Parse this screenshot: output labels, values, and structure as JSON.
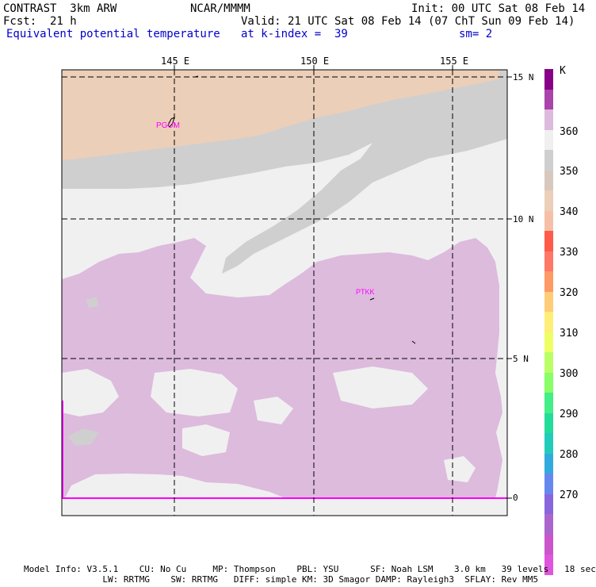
{
  "header": {
    "model": "CONTRAST  3km ARW",
    "org": "NCAR/MMMM",
    "init": "Init: 00 UTC Sat 08 Feb 14",
    "fcst": "Fcst:  21 h",
    "valid": "Valid: 21 UTC Sat 08 Feb 14 (07 ChT Sun 09 Feb 14)",
    "field": "Equivalent potential temperature",
    "level": "at k-index =  39",
    "smooth": "sm= 2"
  },
  "map": {
    "lon_labels": [
      "145 E",
      "150 E",
      "155 E"
    ],
    "lat_labels": [
      "15 N",
      "10 N",
      "5 N",
      "0"
    ],
    "stations": [
      "PGUM",
      "PTKK"
    ],
    "colors": {
      "band_340": "#eccfb9",
      "band_350": "#cfcfcf",
      "band_360": "#f0f0f0",
      "band_370": "#ddbbdd",
      "grid": "#000000",
      "station": "#ff00ff"
    }
  },
  "colorbar": {
    "unit": "K",
    "labels": [
      "360",
      "350",
      "340",
      "330",
      "320",
      "310",
      "300",
      "290",
      "280",
      "270"
    ],
    "colors": [
      "#880088",
      "#aa44aa",
      "#ddbbdd",
      "#f0f0f0",
      "#cfcfcf",
      "#d7c8be",
      "#eccfb9",
      "#f6c0a8",
      "#ff5a4a",
      "#ff7766",
      "#ff9966",
      "#ffcc77",
      "#ffee77",
      "#eeff66",
      "#bbff66",
      "#88ff66",
      "#44ee88",
      "#22dd99",
      "#22ccbb",
      "#33aadd",
      "#6688ee",
      "#8866dd",
      "#aa66cc",
      "#cc55cc",
      "#e055dd"
    ]
  },
  "footer": {
    "line1": "Model Info: V3.5.1    CU: No Cu     MP: Thompson    PBL: YSU      SF: Noah LSM    3.0 km   39 levels   18 sec",
    "line2": "               LW: RRTMG    SW: RRTMG   DIFF: simple KM: 3D Smagor DAMP: Rayleigh3  SFLAY: Rev MM5"
  }
}
